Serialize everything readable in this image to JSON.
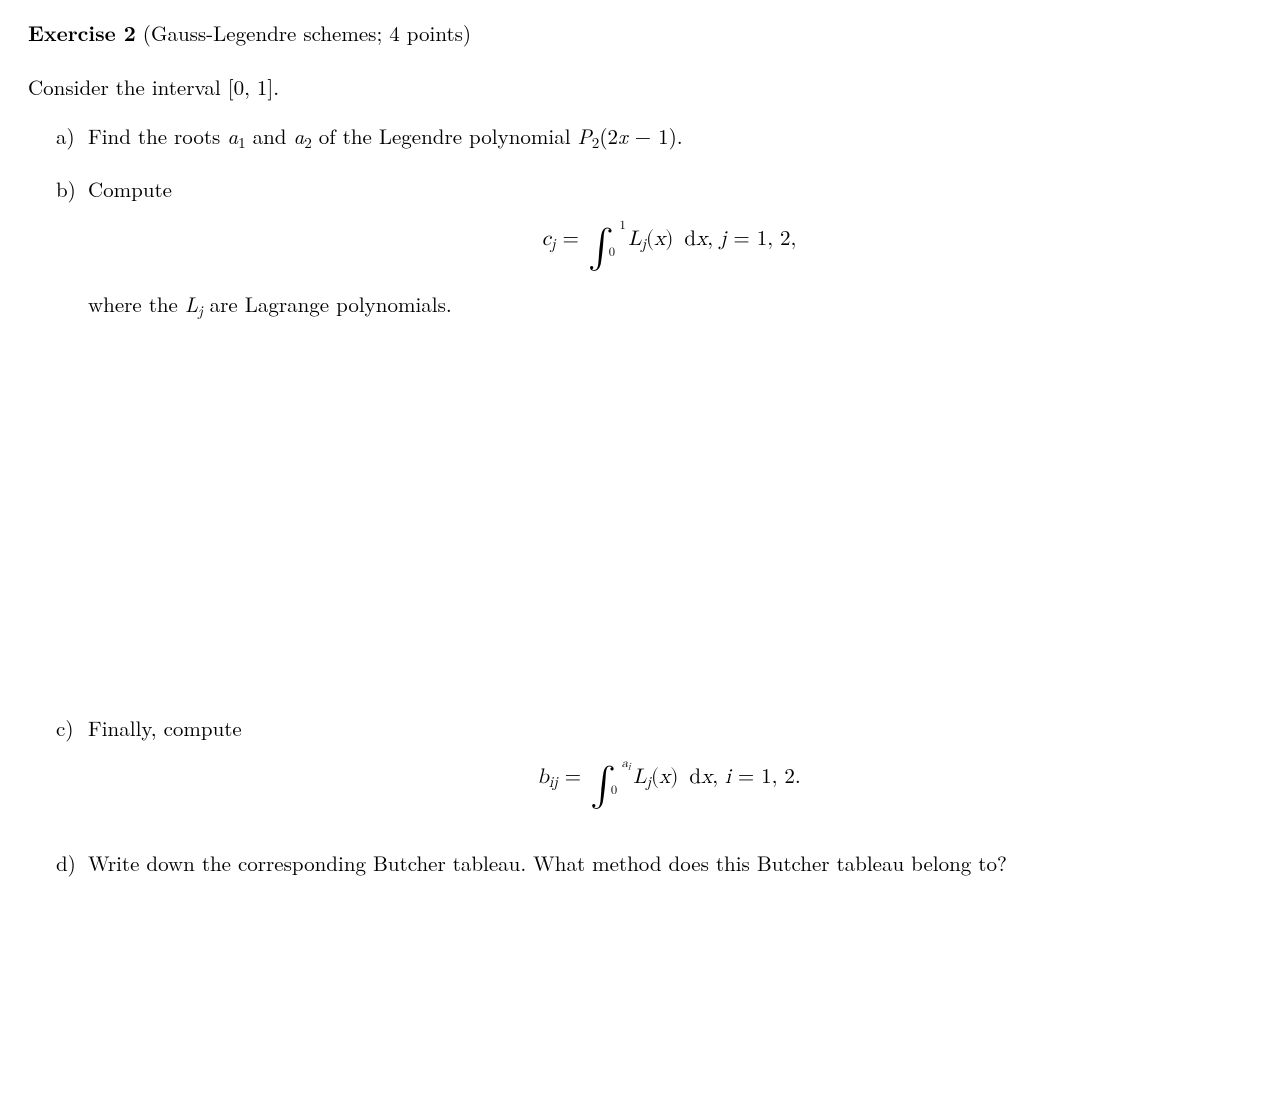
{
  "header": {
    "label": "Exercise 2",
    "paren": "(Gauss-Legendre schemes; 4 points)"
  },
  "intro": {
    "prefix": "Consider the interval ",
    "interval": "[0, 1]",
    "suffix": "."
  },
  "items": {
    "a": {
      "marker": "a)",
      "t1": "Find the roots ",
      "a1": "a",
      "a1sub": "1",
      "t2": " and ",
      "a2": "a",
      "a2sub": "2",
      "t3": " of the Legendre polynomial ",
      "P": "P",
      "Psub": "2",
      "arg": "(2",
      "x": "x",
      "argend": " − 1).",
      "trail": ""
    },
    "b": {
      "marker": "b)",
      "lead": "Compute",
      "eq": {
        "c": "c",
        "csub": "j",
        "eq": " = ",
        "sup": "1",
        "sub": "0",
        "L": "L",
        "Lsub": "j",
        "lp": "(",
        "x": "x",
        "rp": ")",
        "d": " d",
        "xx": "x",
        "comma": ",   ",
        "j": "j",
        "jval": " = 1, 2,"
      },
      "follow1": "where the ",
      "Lj_L": "L",
      "Lj_sub": "j",
      "follow2": " are Lagrange polynomials."
    },
    "c": {
      "marker": "c)",
      "lead": "Finally, compute",
      "eq": {
        "b": "b",
        "bsub": "ij",
        "eq": " = ",
        "sup_a": "a",
        "sup_i": "i",
        "sub": "0",
        "L": "L",
        "Lsub": "j",
        "lp": "(",
        "x": "x",
        "rp": ")",
        "d": " d",
        "xx": "x",
        "comma": ",   ",
        "i": "i",
        "ival": " = 1, 2."
      }
    },
    "d": {
      "marker": "d)",
      "text": "Write down the corresponding Butcher tableau.  What method does this Butcher tableau belong to?"
    }
  }
}
